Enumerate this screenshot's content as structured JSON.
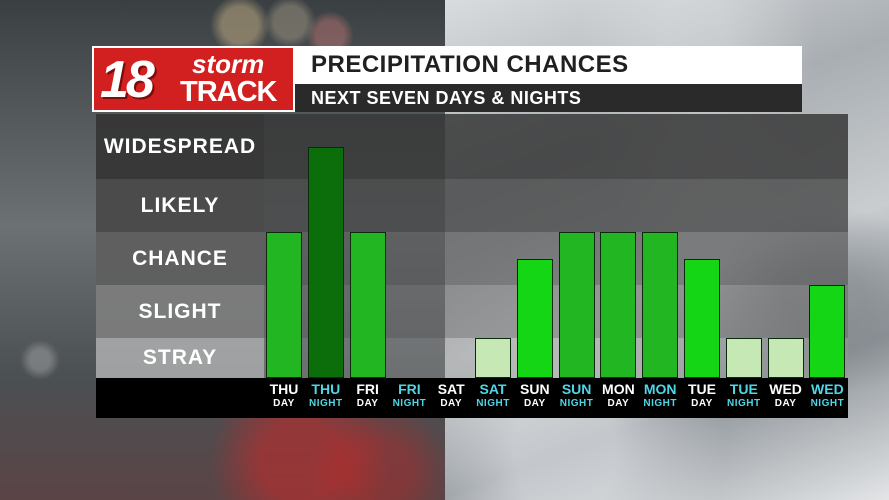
{
  "brand": {
    "number": "18",
    "word_top": "storm",
    "word_bottom": "TRACK"
  },
  "header": {
    "title": "PRECIPITATION CHANCES",
    "subtitle": "NEXT SEVEN DAYS & NIGHTS"
  },
  "colors": {
    "brand_red": "#d21f1f",
    "night_text": "#4fd6e6",
    "day_text": "#ffffff"
  },
  "chart_data": {
    "type": "bar",
    "title": "PRECIPITATION CHANCES",
    "subtitle": "NEXT SEVEN DAYS & NIGHTS",
    "levels": [
      "STRAY",
      "SLIGHT",
      "CHANCE",
      "LIKELY",
      "WIDESPREAD"
    ],
    "ylim": [
      0,
      5
    ],
    "categories": [
      {
        "day": "THU",
        "period": "DAY",
        "night": false
      },
      {
        "day": "THU",
        "period": "NIGHT",
        "night": true
      },
      {
        "day": "FRI",
        "period": "DAY",
        "night": false
      },
      {
        "day": "FRI",
        "period": "NIGHT",
        "night": true
      },
      {
        "day": "SAT",
        "period": "DAY",
        "night": false
      },
      {
        "day": "SAT",
        "period": "NIGHT",
        "night": true
      },
      {
        "day": "SUN",
        "period": "DAY",
        "night": false
      },
      {
        "day": "SUN",
        "period": "NIGHT",
        "night": true
      },
      {
        "day": "MON",
        "period": "DAY",
        "night": false
      },
      {
        "day": "MON",
        "period": "NIGHT",
        "night": true
      },
      {
        "day": "TUE",
        "period": "DAY",
        "night": false
      },
      {
        "day": "TUE",
        "period": "NIGHT",
        "night": true
      },
      {
        "day": "WED",
        "period": "DAY",
        "night": false
      },
      {
        "day": "WED",
        "period": "NIGHT",
        "night": true
      }
    ],
    "values": [
      3,
      4.5,
      3,
      0,
      0,
      1,
      2.5,
      3,
      3,
      3,
      2.5,
      1,
      1,
      2
    ],
    "bar_colors": [
      "#22b722",
      "#0b6e0b",
      "#22b722",
      "",
      "",
      "#c5e8b5",
      "#14d614",
      "#22b722",
      "#22b722",
      "#22b722",
      "#14d614",
      "#c5e8b5",
      "#c5e8b5",
      "#14d614"
    ],
    "grid": false
  }
}
